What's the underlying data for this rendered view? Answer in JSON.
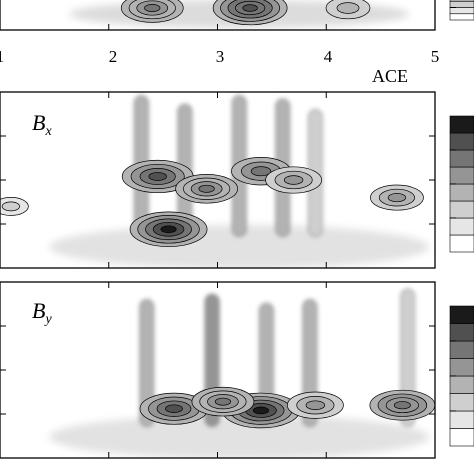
{
  "chart_data": [
    {
      "type": "heatmap",
      "panel": "top",
      "title": "",
      "xlabel": "",
      "ylabel": "",
      "xlim": [
        1,
        5
      ],
      "x_ticks": [
        1,
        2,
        3,
        4,
        5
      ],
      "x_tick_labels": [
        "1",
        "2",
        "3",
        "4",
        "5"
      ],
      "contours": [
        {
          "x": 2.4,
          "y": 0.85,
          "level": 0.7
        },
        {
          "x": 3.3,
          "y": 0.85,
          "level": 0.9
        },
        {
          "x": 4.2,
          "y": 0.8,
          "level": 0.4
        }
      ]
    },
    {
      "type": "heatmap",
      "panel": "middle",
      "title": "ACE",
      "panel_label": "B",
      "panel_sub": "x",
      "xlim": [
        1,
        5
      ],
      "ylim": [
        0,
        1
      ],
      "colorbar_levels": 8,
      "contours": [
        {
          "x": 2.55,
          "y": 0.22,
          "level": 0.95
        },
        {
          "x": 2.45,
          "y": 0.52,
          "level": 0.85
        },
        {
          "x": 2.9,
          "y": 0.45,
          "level": 0.7
        },
        {
          "x": 3.4,
          "y": 0.55,
          "level": 0.65
        },
        {
          "x": 3.7,
          "y": 0.5,
          "level": 0.6
        },
        {
          "x": 4.65,
          "y": 0.4,
          "level": 0.55
        },
        {
          "x": 2.3,
          "y": 0.8,
          "level": 0.45
        },
        {
          "x": 2.7,
          "y": 0.75,
          "level": 0.4
        },
        {
          "x": 3.2,
          "y": 0.8,
          "level": 0.45
        },
        {
          "x": 3.6,
          "y": 0.78,
          "level": 0.4
        },
        {
          "x": 3.9,
          "y": 0.72,
          "level": 0.35
        },
        {
          "x": 1.1,
          "y": 0.35,
          "level": 0.25
        }
      ]
    },
    {
      "type": "heatmap",
      "panel": "bottom",
      "title": "",
      "panel_label": "B",
      "panel_sub": "y",
      "xlim": [
        1,
        5
      ],
      "ylim": [
        0,
        1
      ],
      "colorbar_levels": 8,
      "contours": [
        {
          "x": 3.4,
          "y": 0.27,
          "level": 0.95
        },
        {
          "x": 2.6,
          "y": 0.28,
          "level": 0.8
        },
        {
          "x": 3.05,
          "y": 0.32,
          "level": 0.7
        },
        {
          "x": 3.9,
          "y": 0.3,
          "level": 0.6
        },
        {
          "x": 4.7,
          "y": 0.3,
          "level": 0.75
        },
        {
          "x": 2.35,
          "y": 0.72,
          "level": 0.45
        },
        {
          "x": 2.95,
          "y": 0.75,
          "level": 0.5
        },
        {
          "x": 3.45,
          "y": 0.7,
          "level": 0.45
        },
        {
          "x": 3.85,
          "y": 0.72,
          "level": 0.45
        },
        {
          "x": 4.75,
          "y": 0.78,
          "level": 0.35
        }
      ]
    }
  ],
  "colors": {
    "frame": "#000000",
    "background": "#ffffff",
    "colorbar": [
      "#ffffff",
      "#e6e6e6",
      "#cfcfcf",
      "#b3b3b3",
      "#959595",
      "#757575",
      "#505050",
      "#1a1a1a"
    ]
  }
}
